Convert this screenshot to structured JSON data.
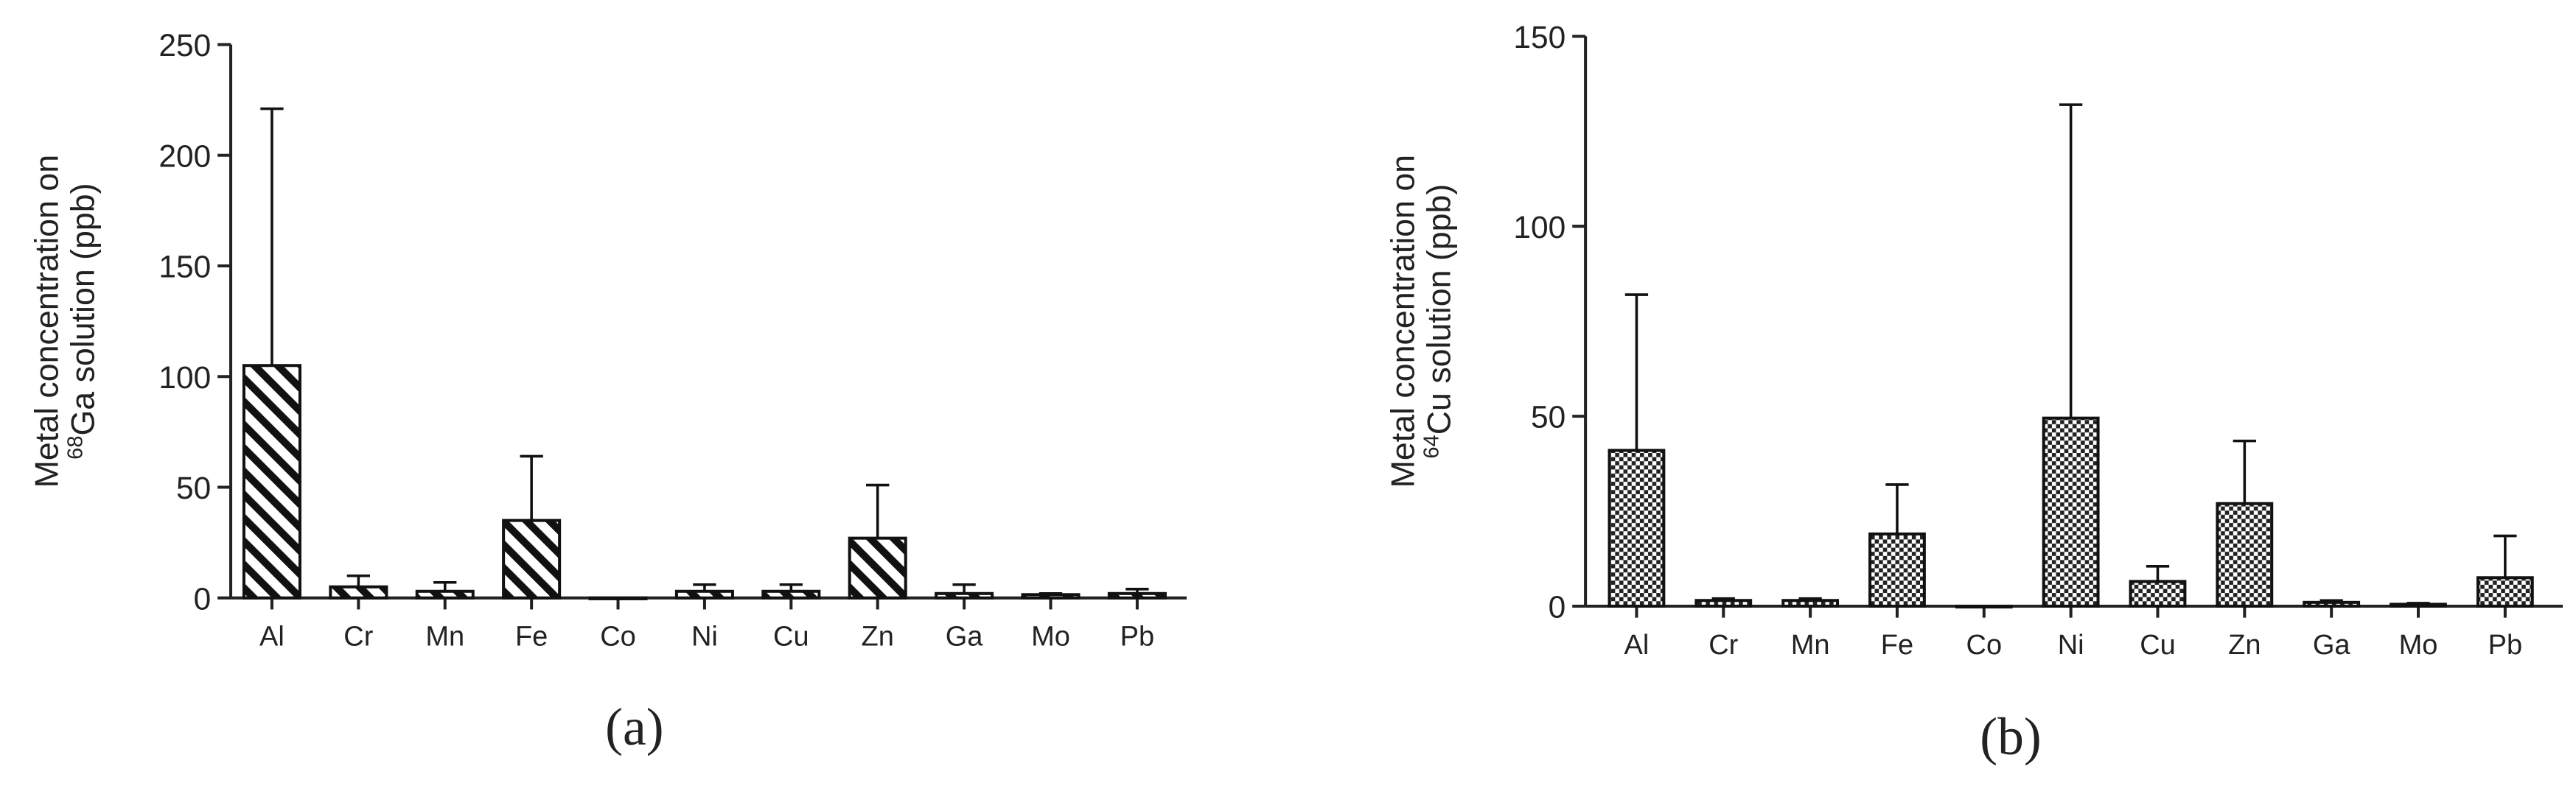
{
  "chart_data": [
    {
      "type": "bar",
      "panel_label": "(a)",
      "pattern": "hatch",
      "ylabel": {
        "line1": "Metal concentration on",
        "sup": "68",
        "rest": "Ga solution (ppb)"
      },
      "categories": [
        "Al",
        "Cr",
        "Mn",
        "Fe",
        "Co",
        "Ni",
        "Cu",
        "Zn",
        "Ga",
        "Mo",
        "Pb"
      ],
      "values": [
        105,
        5,
        3,
        35,
        0,
        3,
        3,
        27,
        2,
        1.5,
        2
      ],
      "errors": [
        116,
        5,
        4,
        29,
        0,
        3,
        3,
        24,
        4,
        0.5,
        2
      ],
      "ylim": [
        0,
        250
      ],
      "yticks": [
        0,
        50,
        100,
        150,
        200,
        250
      ]
    },
    {
      "type": "bar",
      "panel_label": "(b)",
      "pattern": "checker",
      "ylabel": {
        "line1": "Metal concentration on",
        "sup": "64",
        "rest": "Cu solution (ppb)"
      },
      "categories": [
        "Al",
        "Cr",
        "Mn",
        "Fe",
        "Co",
        "Ni",
        "Cu",
        "Zn",
        "Ga",
        "Mo",
        "Pb"
      ],
      "values": [
        41,
        1.5,
        1.5,
        19,
        0,
        49.5,
        6.5,
        27,
        1,
        0.5,
        7.5
      ],
      "errors": [
        41,
        0.5,
        0.5,
        13,
        0,
        82.5,
        4,
        16.5,
        0.5,
        0.3,
        11
      ],
      "ylim": [
        0,
        150
      ],
      "yticks": [
        0,
        50,
        100,
        150
      ]
    }
  ]
}
